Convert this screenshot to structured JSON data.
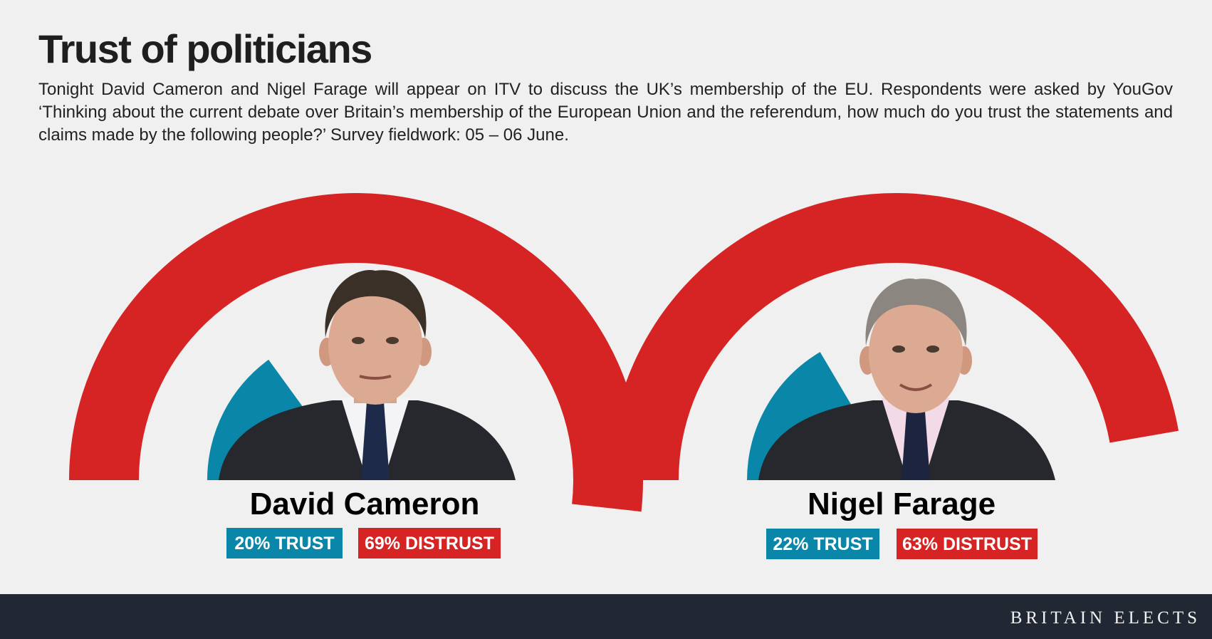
{
  "title": "Trust of politicians",
  "subtitle": "Tonight David Cameron and Nigel Farage will appear on ITV to discuss the UK’s membership of the EU. Respondents were asked by YouGov ‘Thinking about the current debate over Britain’s membership of the European Union and the referendum, how much do you trust the statements and claims made by the following people?’ Survey fieldwork: 05 – 06 June.",
  "colors": {
    "trust": "#0a87a8",
    "distrust": "#d62424",
    "background": "#f0f0f0",
    "footer": "#222833"
  },
  "chart_data": {
    "type": "pie",
    "title": "Trust of politicians",
    "categories": [
      "David Cameron",
      "Nigel Farage"
    ],
    "series": [
      {
        "name": "TRUST",
        "values": [
          20,
          22
        ]
      },
      {
        "name": "DISTRUST",
        "values": [
          69,
          63
        ]
      }
    ],
    "labels": [
      {
        "trust": "20% TRUST",
        "distrust": "69% DISTRUST"
      },
      {
        "trust": "22% TRUST",
        "distrust": "63% DISTRUST"
      }
    ],
    "arc_span_percent": 100
  },
  "footer": {
    "brand": "BRITAIN ELECTS"
  }
}
